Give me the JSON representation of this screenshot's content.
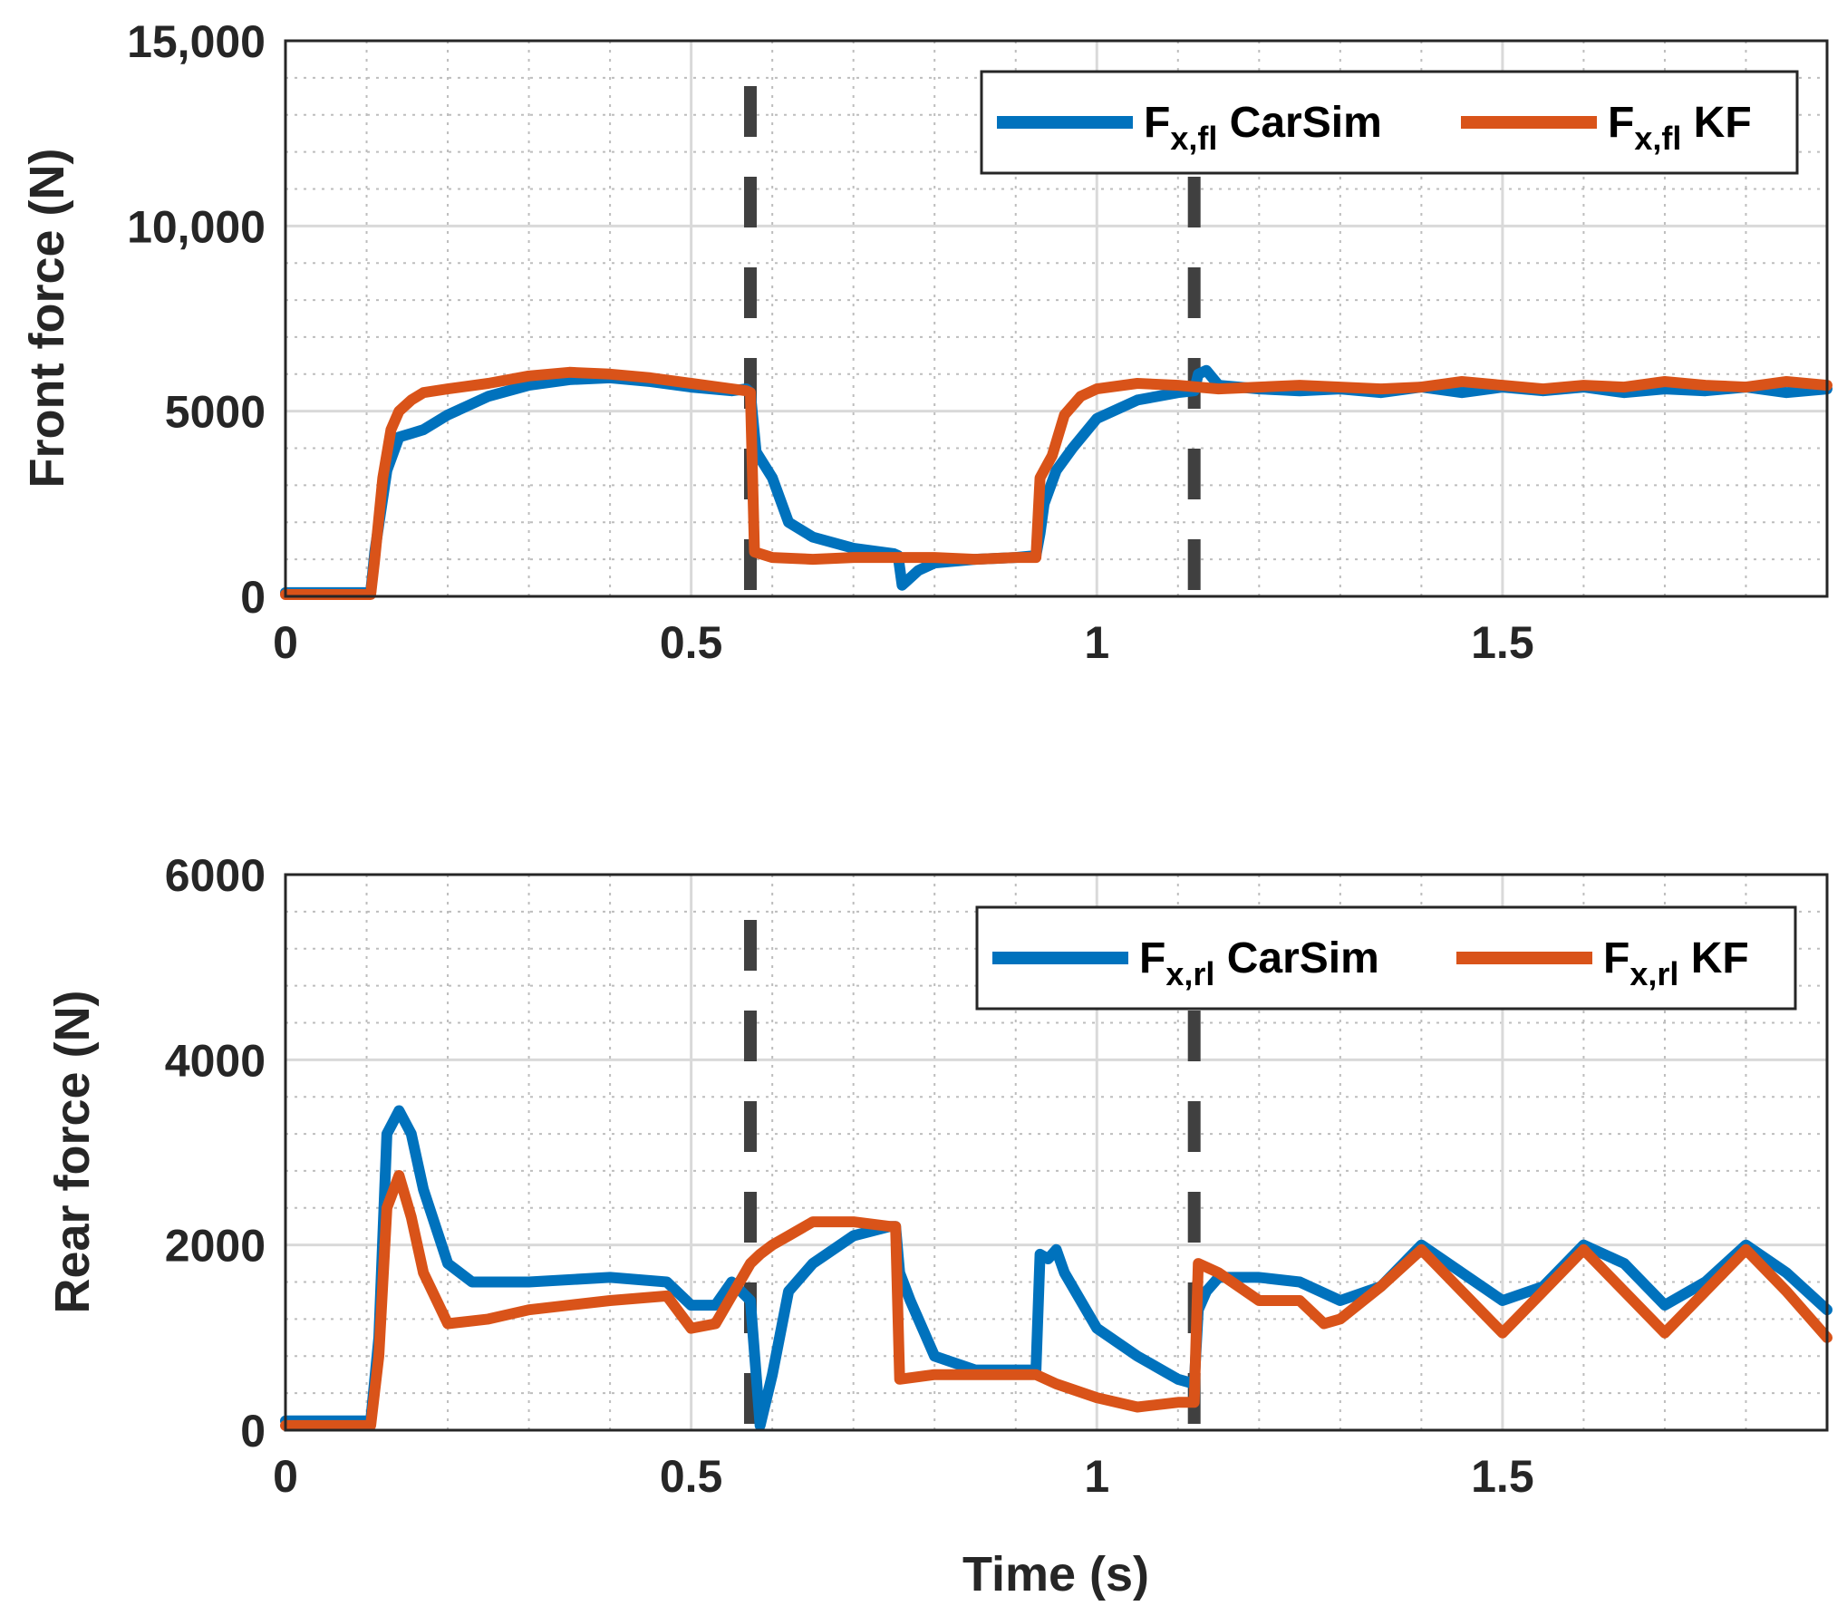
{
  "chart_data": [
    {
      "type": "line",
      "ylabel": "Front force (N)",
      "xlabel": "",
      "xlim": [
        0,
        1.9
      ],
      "ylim": [
        0,
        15000
      ],
      "xticks": [
        0,
        0.5,
        1,
        1.5
      ],
      "xtick_labels": [
        "0",
        "0.5",
        "1",
        "1.5"
      ],
      "yticks": [
        0,
        5000,
        10000,
        15000
      ],
      "ytick_labels": [
        "0",
        "5000",
        "10,000",
        "15,000"
      ],
      "grid": true,
      "legend_position": "top-right",
      "vlines": [
        0.573,
        1.12
      ],
      "series": [
        {
          "name": "CarSim",
          "legend_main": "F",
          "legend_sub": "x,fl",
          "legend_rest": " CarSim",
          "color": "#0072BD",
          "x": [
            0,
            0.05,
            0.105,
            0.11,
            0.125,
            0.14,
            0.155,
            0.17,
            0.2,
            0.25,
            0.3,
            0.35,
            0.4,
            0.45,
            0.5,
            0.55,
            0.568,
            0.573,
            0.58,
            0.6,
            0.62,
            0.65,
            0.7,
            0.75,
            0.755,
            0.76,
            0.765,
            0.78,
            0.8,
            0.85,
            0.9,
            0.925,
            0.93,
            0.935,
            0.95,
            0.97,
            1.0,
            1.05,
            1.1,
            1.12,
            1.125,
            1.135,
            1.15,
            1.2,
            1.25,
            1.3,
            1.35,
            1.4,
            1.45,
            1.5,
            1.55,
            1.6,
            1.65,
            1.7,
            1.75,
            1.8,
            1.85,
            1.9
          ],
          "y": [
            100,
            100,
            100,
            1200,
            3400,
            4300,
            4400,
            4500,
            4900,
            5400,
            5700,
            5850,
            5900,
            5800,
            5650,
            5550,
            5600,
            5500,
            3900,
            3200,
            2000,
            1600,
            1300,
            1150,
            1100,
            300,
            400,
            700,
            900,
            1000,
            1050,
            1100,
            1700,
            2500,
            3400,
            4000,
            4800,
            5300,
            5500,
            5550,
            6000,
            6100,
            5700,
            5600,
            5550,
            5600,
            5500,
            5650,
            5500,
            5650,
            5550,
            5650,
            5500,
            5600,
            5550,
            5650,
            5500,
            5600
          ]
        },
        {
          "name": "KF",
          "legend_main": "F",
          "legend_sub": "x,fl",
          "legend_rest": " KF",
          "color": "#D95319",
          "x": [
            0,
            0.05,
            0.105,
            0.11,
            0.12,
            0.13,
            0.14,
            0.155,
            0.17,
            0.2,
            0.25,
            0.3,
            0.35,
            0.4,
            0.45,
            0.5,
            0.55,
            0.568,
            0.573,
            0.578,
            0.6,
            0.65,
            0.7,
            0.75,
            0.8,
            0.85,
            0.9,
            0.925,
            0.93,
            0.945,
            0.96,
            0.98,
            1.0,
            1.05,
            1.1,
            1.15,
            1.2,
            1.25,
            1.3,
            1.35,
            1.4,
            1.45,
            1.5,
            1.55,
            1.6,
            1.65,
            1.7,
            1.75,
            1.8,
            1.85,
            1.9
          ],
          "y": [
            50,
            50,
            50,
            1000,
            3200,
            4500,
            5000,
            5300,
            5500,
            5600,
            5750,
            5950,
            6050,
            6000,
            5900,
            5750,
            5600,
            5550,
            5500,
            1200,
            1050,
            1000,
            1050,
            1050,
            1050,
            1000,
            1050,
            1050,
            3200,
            3800,
            4900,
            5400,
            5600,
            5750,
            5700,
            5600,
            5650,
            5700,
            5650,
            5600,
            5650,
            5800,
            5700,
            5600,
            5700,
            5650,
            5800,
            5700,
            5650,
            5800,
            5700
          ]
        }
      ]
    },
    {
      "type": "line",
      "ylabel": "Rear force (N)",
      "xlabel": "Time (s)",
      "xlim": [
        0,
        1.9
      ],
      "ylim": [
        0,
        6000
      ],
      "xticks": [
        0,
        0.5,
        1,
        1.5
      ],
      "xtick_labels": [
        "0",
        "0.5",
        "1",
        "1.5"
      ],
      "yticks": [
        0,
        2000,
        4000,
        6000
      ],
      "ytick_labels": [
        "0",
        "2000",
        "4000",
        "6000"
      ],
      "grid": true,
      "legend_position": "top-right",
      "vlines": [
        0.573,
        1.12
      ],
      "series": [
        {
          "name": "CarSim",
          "legend_main": "F",
          "legend_sub": "x,rl",
          "legend_rest": " CarSim",
          "color": "#0072BD",
          "x": [
            0,
            0.05,
            0.105,
            0.115,
            0.125,
            0.14,
            0.155,
            0.17,
            0.2,
            0.23,
            0.3,
            0.4,
            0.47,
            0.5,
            0.53,
            0.55,
            0.573,
            0.585,
            0.6,
            0.62,
            0.65,
            0.7,
            0.745,
            0.752,
            0.757,
            0.77,
            0.8,
            0.85,
            0.9,
            0.925,
            0.93,
            0.94,
            0.95,
            0.96,
            0.98,
            1.0,
            1.05,
            1.1,
            1.12,
            1.125,
            1.135,
            1.15,
            1.2,
            1.25,
            1.3,
            1.35,
            1.4,
            1.45,
            1.5,
            1.55,
            1.6,
            1.65,
            1.7,
            1.75,
            1.8,
            1.85,
            1.9
          ],
          "y": [
            100,
            100,
            100,
            1000,
            3200,
            3450,
            3200,
            2600,
            1800,
            1600,
            1600,
            1650,
            1600,
            1350,
            1350,
            1600,
            1400,
            50,
            600,
            1500,
            1800,
            2100,
            2200,
            2200,
            1700,
            1400,
            800,
            650,
            650,
            650,
            1900,
            1850,
            1950,
            1700,
            1400,
            1100,
            800,
            550,
            500,
            1300,
            1500,
            1650,
            1650,
            1600,
            1400,
            1550,
            2000,
            1700,
            1400,
            1550,
            2000,
            1800,
            1350,
            1600,
            2000,
            1700,
            1300
          ]
        },
        {
          "name": "KF",
          "legend_main": "F",
          "legend_sub": "x,rl",
          "legend_rest": " KF",
          "color": "#D95319",
          "x": [
            0,
            0.05,
            0.105,
            0.115,
            0.125,
            0.14,
            0.155,
            0.17,
            0.2,
            0.25,
            0.3,
            0.35,
            0.4,
            0.47,
            0.5,
            0.53,
            0.573,
            0.585,
            0.6,
            0.62,
            0.65,
            0.7,
            0.745,
            0.752,
            0.757,
            0.8,
            0.9,
            0.925,
            0.95,
            1.0,
            1.05,
            1.1,
            1.12,
            1.125,
            1.15,
            1.2,
            1.25,
            1.28,
            1.3,
            1.35,
            1.4,
            1.45,
            1.5,
            1.55,
            1.6,
            1.65,
            1.7,
            1.75,
            1.8,
            1.85,
            1.9
          ],
          "y": [
            50,
            50,
            50,
            800,
            2400,
            2750,
            2300,
            1700,
            1150,
            1200,
            1300,
            1350,
            1400,
            1450,
            1100,
            1150,
            1800,
            1900,
            2000,
            2100,
            2250,
            2250,
            2200,
            2200,
            550,
            600,
            600,
            600,
            500,
            350,
            250,
            300,
            300,
            1800,
            1700,
            1400,
            1400,
            1150,
            1200,
            1550,
            1950,
            1500,
            1050,
            1500,
            1950,
            1500,
            1050,
            1500,
            1950,
            1500,
            1000
          ]
        }
      ]
    }
  ]
}
